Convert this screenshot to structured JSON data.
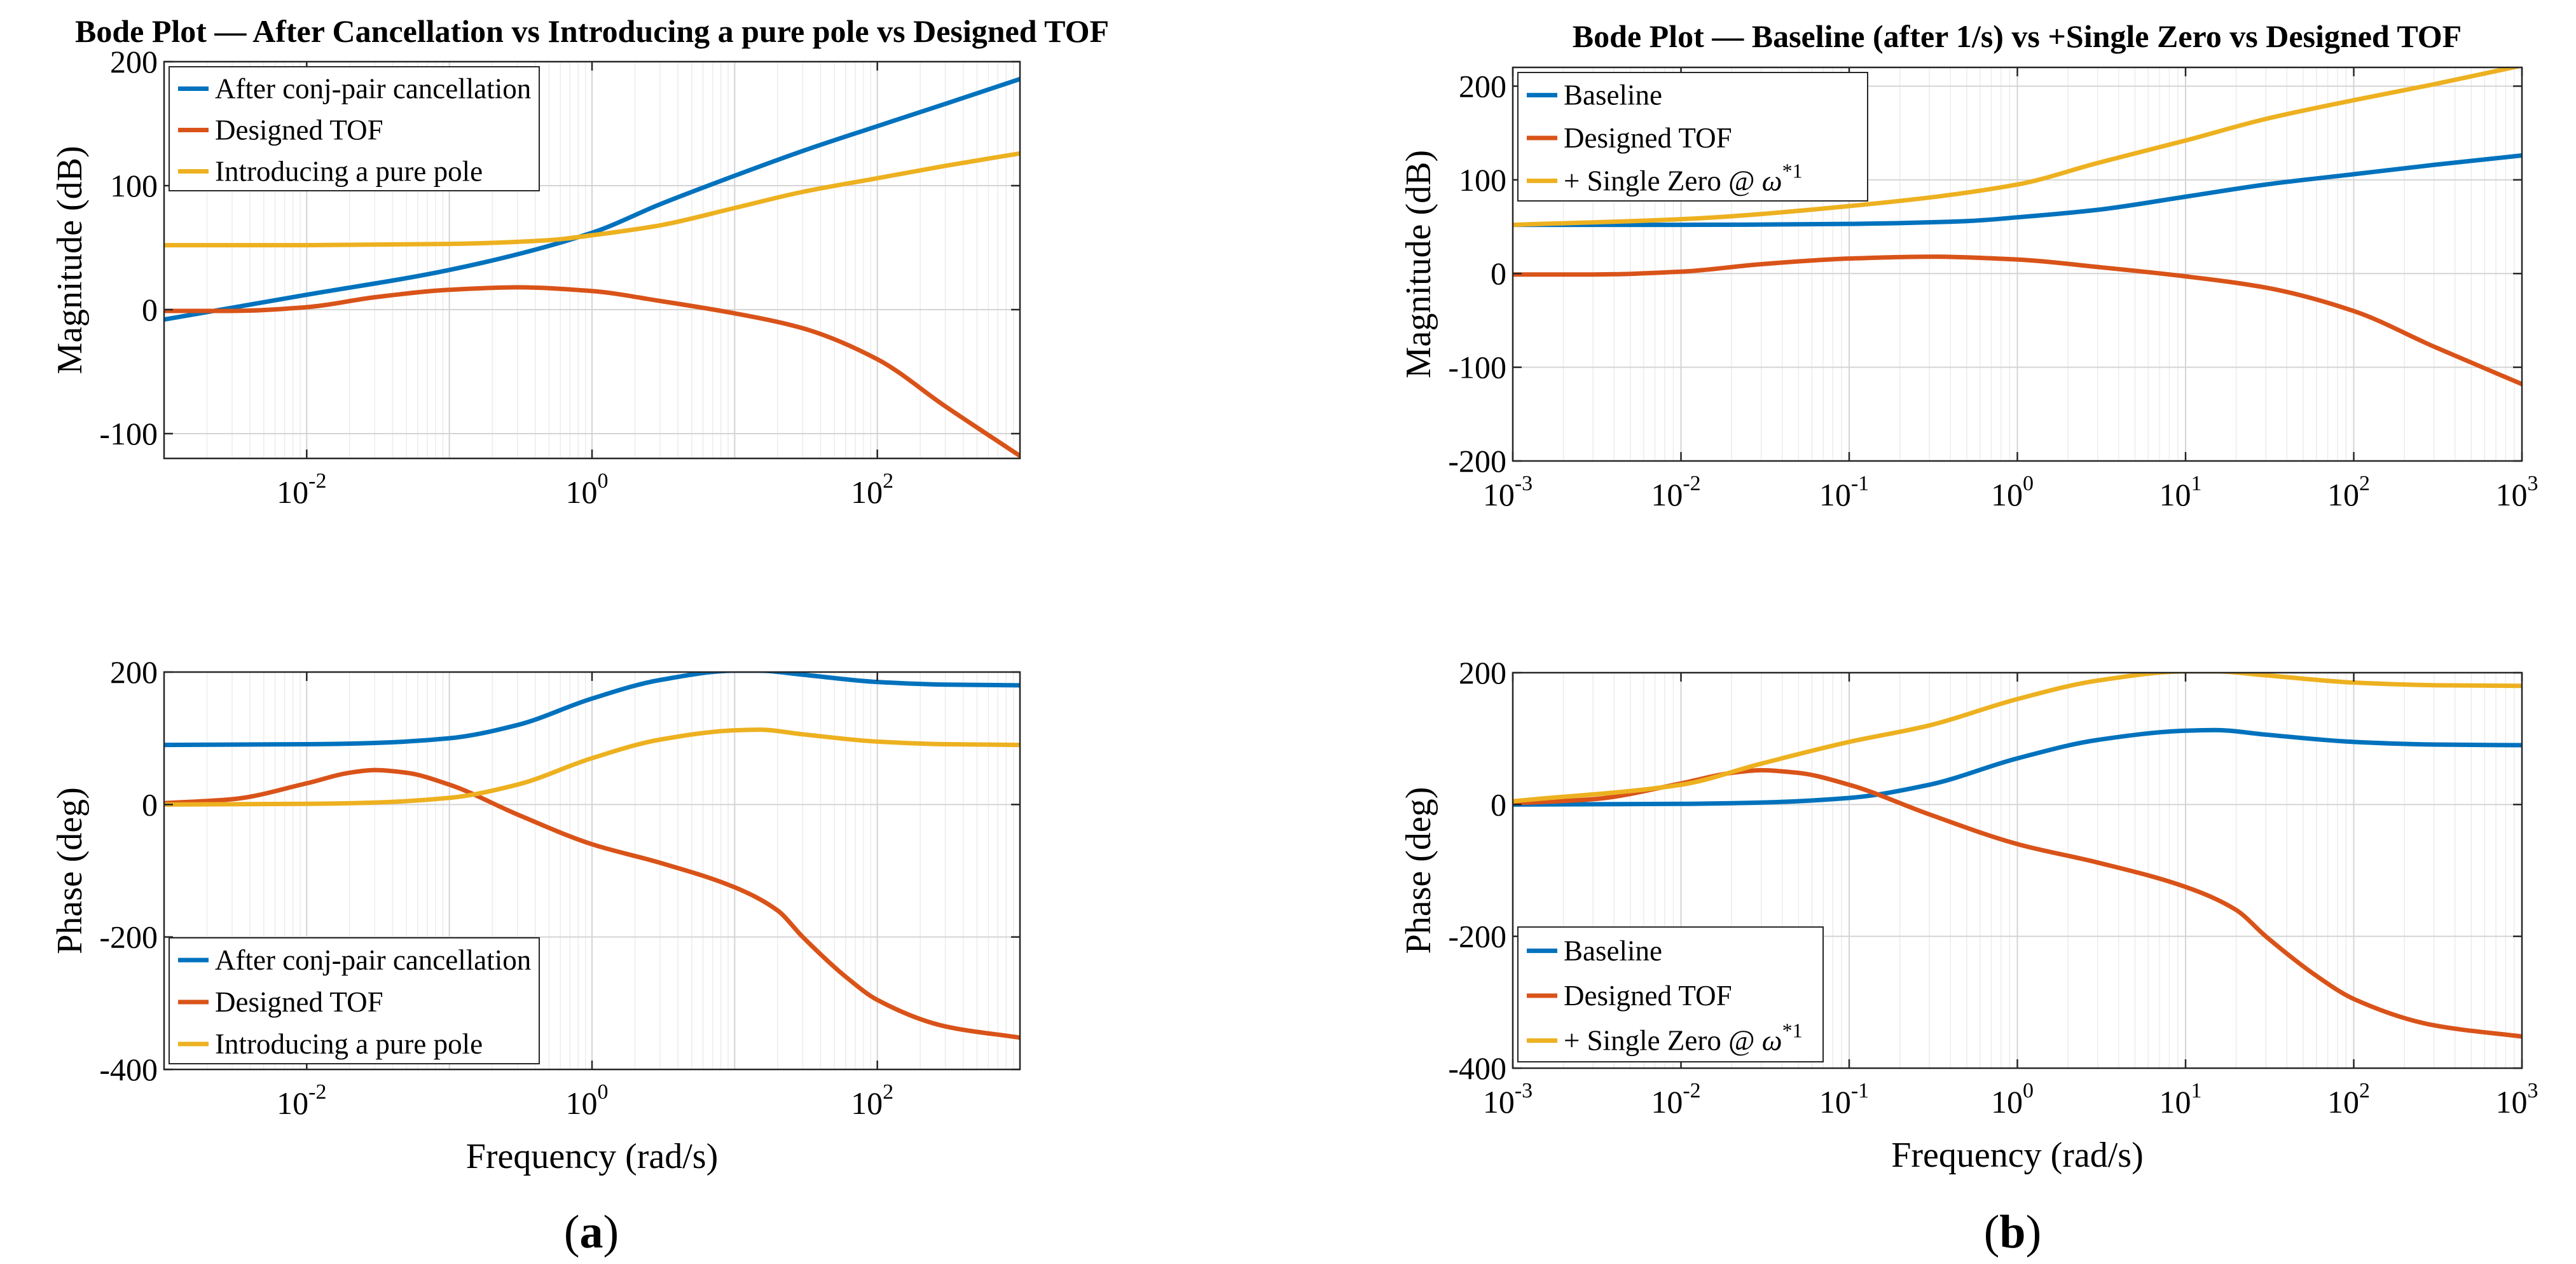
{
  "colors": {
    "blue": "#0072BD",
    "orange": "#D95319",
    "yellow": "#EDB120"
  },
  "panel_labels": [
    "(a)",
    "(b)"
  ],
  "chart_data": [
    {
      "id": "a-mag",
      "type": "line",
      "title": "Bode Plot — After Cancellation vs Introducing a pure pole vs Designed TOF",
      "xlabel": "",
      "ylabel": "Magnitude (dB)",
      "xscale": "log",
      "xlim": [
        0.001,
        1000
      ],
      "ylim": [
        -120,
        200
      ],
      "yticks": [
        -100,
        0,
        100,
        200
      ],
      "yticklabels": [
        "-100",
        "0",
        "100",
        "200"
      ],
      "xticks": [
        0.01,
        1,
        100
      ],
      "xticklabels": [
        [
          "10",
          "-2"
        ],
        [
          "10",
          "0"
        ],
        [
          "10",
          "2"
        ]
      ],
      "legend": "top-left",
      "series": [
        {
          "name": "After conj-pair cancellation",
          "color": "#0072BD",
          "x": [
            0.001,
            0.01,
            0.1,
            1,
            3,
            10,
            30,
            100,
            300,
            1000
          ],
          "y": [
            -8,
            12,
            32,
            62,
            85,
            108,
            128,
            148,
            166,
            186
          ]
        },
        {
          "name": "Designed TOF",
          "color": "#D95319",
          "x": [
            0.001,
            0.003,
            0.01,
            0.03,
            0.1,
            0.3,
            1,
            3,
            10,
            30,
            100,
            300,
            1000
          ],
          "y": [
            -1,
            -1,
            2,
            10,
            16,
            18,
            15,
            7,
            -3,
            -15,
            -40,
            -78,
            -118
          ]
        },
        {
          "name": "Introducing a pure pole",
          "color": "#EDB120",
          "x": [
            0.001,
            0.01,
            0.1,
            0.5,
            1,
            3,
            10,
            30,
            100,
            300,
            1000
          ],
          "y": [
            52,
            52,
            53,
            56,
            60,
            68,
            82,
            95,
            106,
            116,
            126
          ]
        }
      ]
    },
    {
      "id": "a-phase",
      "type": "line",
      "title": "",
      "xlabel": "Frequency (rad/s)",
      "ylabel": "Phase (deg)",
      "xscale": "log",
      "xlim": [
        0.001,
        1000
      ],
      "ylim": [
        -400,
        200
      ],
      "yticks": [
        -400,
        -200,
        0,
        200
      ],
      "yticklabels": [
        "-400",
        "-200",
        "0",
        "200"
      ],
      "xticks": [
        0.01,
        1,
        100
      ],
      "xticklabels": [
        [
          "10",
          "-2"
        ],
        [
          "10",
          "0"
        ],
        [
          "10",
          "2"
        ]
      ],
      "legend": "bottom-left",
      "series": [
        {
          "name": "After conj-pair cancellation",
          "color": "#0072BD",
          "x": [
            0.001,
            0.01,
            0.03,
            0.1,
            0.3,
            1,
            3,
            10,
            15,
            30,
            100,
            300,
            1000
          ],
          "y": [
            90,
            91,
            93,
            100,
            120,
            160,
            188,
            202,
            202,
            196,
            185,
            181,
            180
          ]
        },
        {
          "name": "Designed TOF",
          "color": "#D95319",
          "x": [
            0.001,
            0.003,
            0.01,
            0.02,
            0.03,
            0.05,
            0.1,
            0.3,
            1,
            3,
            10,
            20,
            30,
            60,
            100,
            300,
            1000
          ],
          "y": [
            2,
            8,
            32,
            48,
            52,
            48,
            30,
            -15,
            -60,
            -88,
            -125,
            -160,
            -200,
            -260,
            -295,
            -335,
            -352
          ]
        },
        {
          "name": "Introducing a pure pole",
          "color": "#EDB120",
          "x": [
            0.001,
            0.01,
            0.03,
            0.1,
            0.3,
            1,
            3,
            10,
            15,
            30,
            100,
            300,
            1000
          ],
          "y": [
            0,
            1,
            3,
            10,
            30,
            70,
            98,
            112,
            113,
            106,
            95,
            91,
            90
          ]
        }
      ]
    },
    {
      "id": "b-mag",
      "type": "line",
      "title": "Bode Plot — Baseline (after 1/s) vs +Single Zero vs Designed TOF",
      "xlabel": "",
      "ylabel": "Magnitude (dB)",
      "xscale": "log",
      "xlim": [
        0.001,
        1000
      ],
      "ylim": [
        -200,
        220
      ],
      "yticks": [
        -200,
        -100,
        0,
        100,
        200
      ],
      "yticklabels": [
        "-200",
        "-100",
        "0",
        "100",
        "200"
      ],
      "xticks": [
        0.001,
        0.01,
        0.1,
        1,
        10,
        100,
        1000
      ],
      "xticklabels": [
        [
          "10",
          "-3"
        ],
        [
          "10",
          "-2"
        ],
        [
          "10",
          "-1"
        ],
        [
          "10",
          "0"
        ],
        [
          "10",
          "1"
        ],
        [
          "10",
          "2"
        ],
        [
          "10",
          "3"
        ]
      ],
      "legend": "top-left",
      "series": [
        {
          "name": "Baseline",
          "color": "#0072BD",
          "x": [
            0.001,
            0.01,
            0.1,
            0.5,
            1,
            3,
            10,
            30,
            100,
            300,
            1000
          ],
          "y": [
            52,
            52,
            53,
            56,
            60,
            68,
            82,
            95,
            106,
            116,
            126
          ]
        },
        {
          "name": "Designed TOF",
          "color": "#D95319",
          "x": [
            0.001,
            0.003,
            0.01,
            0.03,
            0.1,
            0.3,
            1,
            3,
            10,
            30,
            100,
            300,
            1000
          ],
          "y": [
            -1,
            -1,
            2,
            10,
            16,
            18,
            15,
            7,
            -3,
            -15,
            -40,
            -78,
            -118
          ]
        },
        {
          "name": "+ Single Zero @ ω*1",
          "label_main": "+ Single Zero @ ",
          "label_symbol": "ω",
          "label_sup": "*1",
          "color": "#EDB120",
          "x": [
            0.001,
            0.01,
            0.1,
            1,
            3,
            10,
            30,
            100,
            300,
            1000
          ],
          "y": [
            52,
            58,
            72,
            95,
            118,
            142,
            165,
            185,
            202,
            222
          ]
        }
      ]
    },
    {
      "id": "b-phase",
      "type": "line",
      "title": "",
      "xlabel": "Frequency (rad/s)",
      "ylabel": "Phase (deg)",
      "xscale": "log",
      "xlim": [
        0.001,
        1000
      ],
      "ylim": [
        -400,
        200
      ],
      "yticks": [
        -400,
        -200,
        0,
        200
      ],
      "yticklabels": [
        "-400",
        "-200",
        "0",
        "200"
      ],
      "xticks": [
        0.001,
        0.01,
        0.1,
        1,
        10,
        100,
        1000
      ],
      "xticklabels": [
        [
          "10",
          "-3"
        ],
        [
          "10",
          "-2"
        ],
        [
          "10",
          "-1"
        ],
        [
          "10",
          "0"
        ],
        [
          "10",
          "1"
        ],
        [
          "10",
          "2"
        ],
        [
          "10",
          "3"
        ]
      ],
      "legend": "bottom-left",
      "series": [
        {
          "name": "Baseline",
          "color": "#0072BD",
          "x": [
            0.001,
            0.01,
            0.03,
            0.1,
            0.3,
            1,
            3,
            10,
            15,
            30,
            100,
            300,
            1000
          ],
          "y": [
            0,
            1,
            3,
            10,
            30,
            70,
            98,
            112,
            113,
            106,
            95,
            91,
            90
          ]
        },
        {
          "name": "Designed TOF",
          "color": "#D95319",
          "x": [
            0.001,
            0.003,
            0.01,
            0.02,
            0.03,
            0.05,
            0.1,
            0.3,
            1,
            3,
            10,
            20,
            30,
            60,
            100,
            300,
            1000
          ],
          "y": [
            2,
            8,
            32,
            48,
            52,
            48,
            30,
            -15,
            -60,
            -88,
            -125,
            -160,
            -200,
            -260,
            -295,
            -335,
            -352
          ]
        },
        {
          "name": "+ Single Zero @ ω*1",
          "label_main": "+ Single Zero @ ",
          "label_symbol": "ω",
          "label_sup": "*1",
          "color": "#EDB120",
          "x": [
            0.001,
            0.01,
            0.03,
            0.1,
            0.3,
            1,
            3,
            10,
            15,
            30,
            100,
            300,
            1000
          ],
          "y": [
            5,
            30,
            62,
            95,
            120,
            160,
            188,
            202,
            202,
            196,
            185,
            181,
            180
          ]
        }
      ]
    }
  ]
}
